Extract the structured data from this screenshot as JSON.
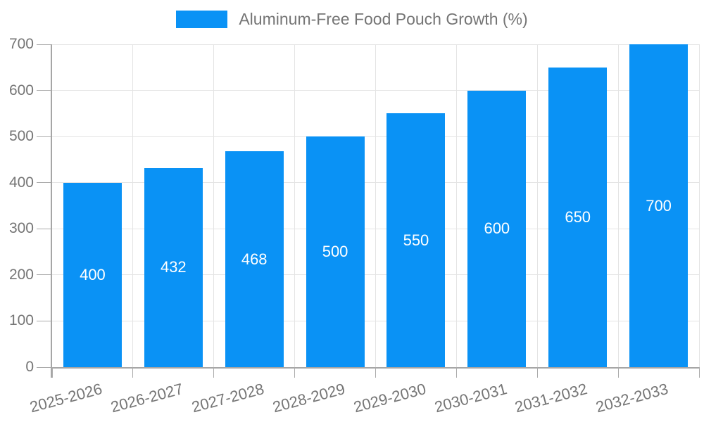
{
  "legend": {
    "label": "Aluminum-Free Food Pouch Growth (%)"
  },
  "colors": {
    "bar": "#0a92f5",
    "grid": "#e4e4e4",
    "axis": "#a6a6a6",
    "tick": "#ababab",
    "text": "#757575",
    "bar_label": "#ffffff",
    "background": "#ffffff"
  },
  "chart_data": {
    "type": "bar",
    "title": "Aluminum-Free Food Pouch Growth (%)",
    "categories": [
      "2025-2026",
      "2026-2027",
      "2027-2028",
      "2028-2029",
      "2029-2030",
      "2030-2031",
      "2031-2032",
      "2032-2033"
    ],
    "values": [
      400,
      432,
      468,
      500,
      550,
      600,
      650,
      700
    ],
    "xlabel": "",
    "ylabel": "",
    "ylim": [
      0,
      700
    ],
    "yticks": [
      0,
      100,
      200,
      300,
      400,
      500,
      600,
      700
    ],
    "grid": true,
    "legend_position": "top-center",
    "value_labels": "inside-center",
    "xtick_rotation_deg": -15
  }
}
